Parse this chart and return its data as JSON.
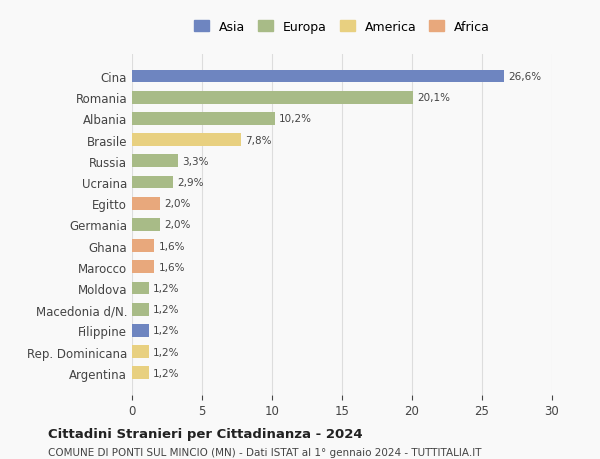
{
  "categories": [
    "Cina",
    "Romania",
    "Albania",
    "Brasile",
    "Russia",
    "Ucraina",
    "Egitto",
    "Germania",
    "Ghana",
    "Marocco",
    "Moldova",
    "Macedonia d/N.",
    "Filippine",
    "Rep. Dominicana",
    "Argentina"
  ],
  "values": [
    26.6,
    20.1,
    10.2,
    7.8,
    3.3,
    2.9,
    2.0,
    2.0,
    1.6,
    1.6,
    1.2,
    1.2,
    1.2,
    1.2,
    1.2
  ],
  "labels": [
    "26,6%",
    "20,1%",
    "10,2%",
    "7,8%",
    "3,3%",
    "2,9%",
    "2,0%",
    "2,0%",
    "1,6%",
    "1,6%",
    "1,2%",
    "1,2%",
    "1,2%",
    "1,2%",
    "1,2%"
  ],
  "colors": [
    "#6e85c0",
    "#a8bb87",
    "#a8bb87",
    "#e8d080",
    "#a8bb87",
    "#a8bb87",
    "#e8a87c",
    "#a8bb87",
    "#e8a87c",
    "#e8a87c",
    "#a8bb87",
    "#a8bb87",
    "#6e85c0",
    "#e8d080",
    "#e8d080"
  ],
  "continent": [
    "Asia",
    "Europa",
    "Europa",
    "America",
    "Europa",
    "Europa",
    "Africa",
    "Europa",
    "Africa",
    "Africa",
    "Europa",
    "Europa",
    "Asia",
    "America",
    "America"
  ],
  "legend_labels": [
    "Asia",
    "Europa",
    "America",
    "Africa"
  ],
  "legend_colors": [
    "#6e85c0",
    "#a8bb87",
    "#e8d080",
    "#e8a87c"
  ],
  "title": "Cittadini Stranieri per Cittadinanza - 2024",
  "subtitle": "COMUNE DI PONTI SUL MINCIO (MN) - Dati ISTAT al 1° gennaio 2024 - TUTTITALIA.IT",
  "xlim": [
    0,
    30
  ],
  "xticks": [
    0,
    5,
    10,
    15,
    20,
    25,
    30
  ],
  "background_color": "#f9f9f9",
  "grid_color": "#dddddd"
}
